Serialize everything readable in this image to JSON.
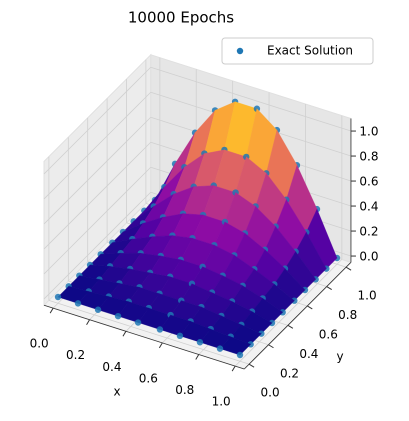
{
  "chart_data": {
    "type": "surface3d",
    "title": "10000 Epochs",
    "xlabel": "x",
    "ylabel": "y",
    "x": [
      0,
      0.11,
      0.22,
      0.33,
      0.44,
      0.56,
      0.67,
      0.78,
      0.89,
      1
    ],
    "y": [
      0,
      0.11,
      0.22,
      0.33,
      0.44,
      0.56,
      0.67,
      0.78,
      0.89,
      1
    ],
    "series": [
      {
        "name": "Exact Solution",
        "color": "#1f77b4",
        "values": [
          [
            0,
            0,
            0,
            0,
            0,
            0,
            0,
            0,
            0,
            0
          ],
          [
            0,
            0.01,
            0.02,
            0.03,
            0.03,
            0.03,
            0.03,
            0.02,
            0.01,
            0
          ],
          [
            0,
            0.02,
            0.04,
            0.06,
            0.06,
            0.06,
            0.06,
            0.04,
            0.02,
            0
          ],
          [
            0,
            0.04,
            0.07,
            0.09,
            0.11,
            0.11,
            0.09,
            0.07,
            0.04,
            0
          ],
          [
            0,
            0.06,
            0.11,
            0.14,
            0.16,
            0.16,
            0.14,
            0.11,
            0.06,
            0
          ],
          [
            0,
            0.08,
            0.15,
            0.21,
            0.24,
            0.24,
            0.21,
            0.15,
            0.08,
            0
          ],
          [
            0,
            0.12,
            0.22,
            0.3,
            0.34,
            0.34,
            0.3,
            0.22,
            0.12,
            0
          ],
          [
            0,
            0.17,
            0.32,
            0.43,
            0.49,
            0.49,
            0.43,
            0.32,
            0.17,
            0
          ],
          [
            0,
            0.24,
            0.45,
            0.61,
            0.69,
            0.69,
            0.61,
            0.45,
            0.24,
            0
          ],
          [
            0,
            0.34,
            0.64,
            0.87,
            0.99,
            0.99,
            0.87,
            0.64,
            0.34,
            0
          ]
        ]
      }
    ],
    "cmap": "plasma",
    "xlim": [
      -0.05,
      1.05
    ],
    "ylim": [
      -0.05,
      1.05
    ],
    "zlim": [
      -0.05,
      1.1
    ],
    "xticks": [
      {
        "value": 0,
        "label": "0.0"
      },
      0.2,
      0.4,
      0.6,
      0.8,
      {
        "value": 1,
        "label": "1.0"
      }
    ],
    "yticks": [
      {
        "value": 0,
        "label": "0.0"
      },
      0.2,
      0.4,
      0.6,
      0.8,
      {
        "value": 1,
        "label": "1.0"
      }
    ],
    "zticks": [
      {
        "value": 0,
        "label": "0.0"
      },
      0.2,
      0.4,
      0.6,
      0.8,
      {
        "value": 1,
        "label": "1.0"
      }
    ],
    "grid": true,
    "legend": "upper right"
  }
}
